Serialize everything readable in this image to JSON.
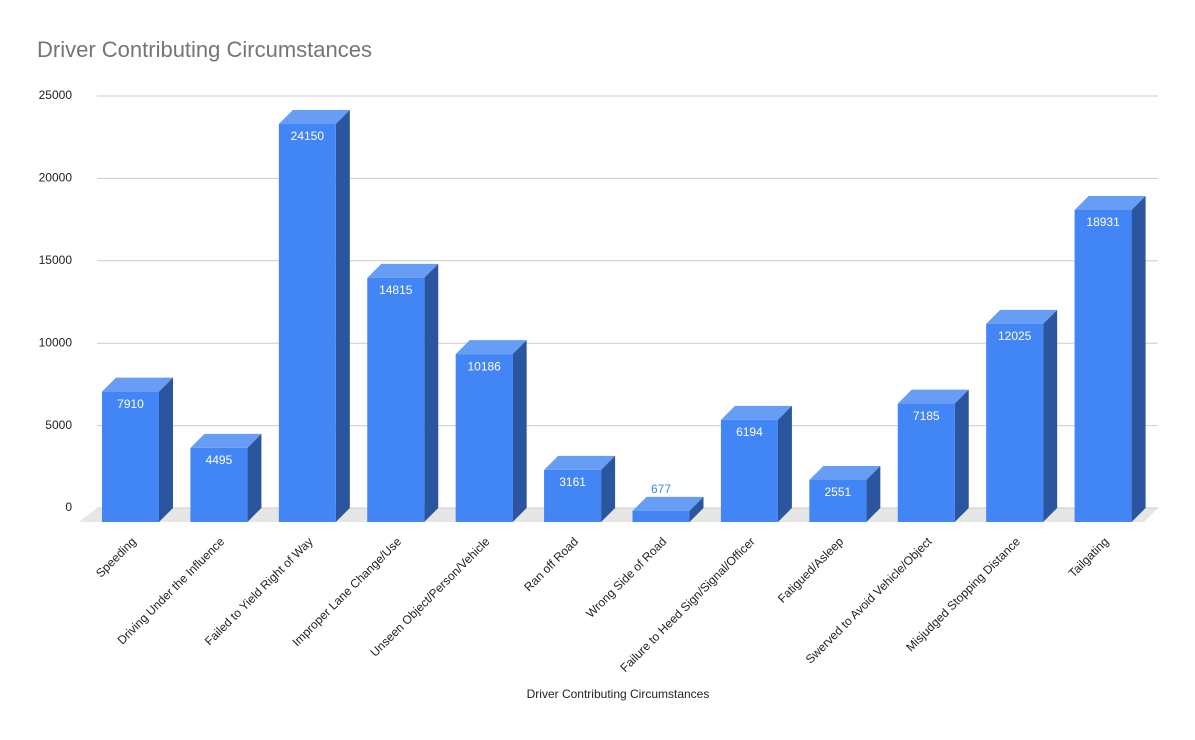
{
  "chart_data": {
    "type": "bar3d",
    "title": "Driver Contributing Circumstances",
    "x_label": "Driver Contributing Circumstances",
    "categories": [
      "Speeding",
      "Driving Under the Influence",
      "Failed to Yield Right of Way",
      "Improper Lane Change/Use",
      "Unseen Object/Person/Vehicle",
      "Ran off Road",
      "Wrong Side of Road",
      "Failure to Heed Sign/Signal/Officer",
      "Fatigued/Asleep",
      "Swerved to Avoid Vehicle/Object",
      "Misjudged Stopping Distance",
      "Tailgating"
    ],
    "values": [
      7910,
      4495,
      24150,
      14815,
      10186,
      3161,
      677,
      6194,
      2551,
      7185,
      12025,
      18931
    ],
    "color": "#4285f4",
    "ylim": [
      0,
      25000
    ],
    "yticks": [
      0,
      5000,
      10000,
      15000,
      20000,
      25000
    ],
    "grid": true
  }
}
